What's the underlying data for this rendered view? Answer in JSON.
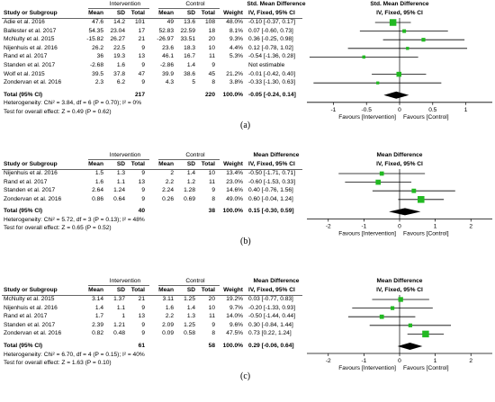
{
  "panels": [
    {
      "caption": "(a)",
      "group_header_a": "Intervention",
      "group_header_b": "Control",
      "effect_header": "Std. Mean Difference",
      "col_headers": [
        "Study or Subgroup",
        "Mean",
        "SD",
        "Total",
        "Mean",
        "SD",
        "Total",
        "Weight",
        "IV, Fixed, 95% CI"
      ],
      "plot_header": "Std. Mean Difference",
      "plot_subheader": "IV, Fixed, 95% CI",
      "rows": [
        {
          "study": "Adie et al. 2016",
          "m1": "47.6",
          "sd1": "14.2",
          "n1": "101",
          "m2": "49",
          "sd2": "13.6",
          "n2": "108",
          "weight": "48.0%",
          "ci": "-0.10 [-0.37, 0.17]"
        },
        {
          "study": "Ballester et al. 2017",
          "m1": "54.35",
          "sd1": "23.04",
          "n1": "17",
          "m2": "52.83",
          "sd2": "22.59",
          "n2": "18",
          "weight": "8.1%",
          "ci": "0.07 [-0.60, 0.73]"
        },
        {
          "study": "McNulty et al. 2015",
          "m1": "-15.82",
          "sd1": "26.27",
          "n1": "21",
          "m2": "-26.97",
          "sd2": "33.51",
          "n2": "20",
          "weight": "9.3%",
          "ci": "0.36 [-0.25, 0.98]"
        },
        {
          "study": "Nijenhuis et al. 2016",
          "m1": "26.2",
          "sd1": "22.5",
          "n1": "9",
          "m2": "23.6",
          "sd2": "18.3",
          "n2": "10",
          "weight": "4.4%",
          "ci": "0.12 [-0.78, 1.02]"
        },
        {
          "study": "Rand et al. 2017",
          "m1": "36",
          "sd1": "19.3",
          "n1": "13",
          "m2": "46.1",
          "sd2": "16.7",
          "n2": "11",
          "weight": "5.3%",
          "ci": "-0.54 [-1.36, 0.28]"
        },
        {
          "study": "Standen et al. 2017",
          "m1": "-2.68",
          "sd1": "1.6",
          "n1": "9",
          "m2": "-2.86",
          "sd2": "1.4",
          "n2": "9",
          "weight": "",
          "ci": "Not estimable"
        },
        {
          "study": "Wolf et al. 2015",
          "m1": "39.5",
          "sd1": "37.8",
          "n1": "47",
          "m2": "39.9",
          "sd2": "38.6",
          "n2": "45",
          "weight": "21.2%",
          "ci": "-0.01 [-0.42, 0.40]"
        },
        {
          "study": "Zondervan et al. 2016",
          "m1": "2.3",
          "sd1": "6.2",
          "n1": "9",
          "m2": "4.3",
          "sd2": "5",
          "n2": "8",
          "weight": "3.8%",
          "ci": "-0.33 [-1.30, 0.63]"
        }
      ],
      "total_label": "Total (95% CI)",
      "total_n1": "217",
      "total_n2": "220",
      "total_weight": "100.0%",
      "total_ci": "-0.05 [-0.24, 0.14]",
      "heterogeneity": "Heterogeneity: Chi² = 3.84, df = 6 (P = 0.70); I² = 0%",
      "overall": "Test for overall effect: Z = 0.49 (P = 0.62)",
      "axis_ticks": [
        "-1",
        "-0.5",
        "0",
        "0.5",
        "1"
      ],
      "favours_left": "Favours [Intervention]",
      "favours_right": "Favours [Control]"
    },
    {
      "caption": "(b)",
      "group_header_a": "Intervention",
      "group_header_b": "Control",
      "effect_header": "Mean Difference",
      "col_headers": [
        "Study or Subgroup",
        "Mean",
        "SD",
        "Total",
        "Mean",
        "SD",
        "Total",
        "Weight",
        "IV, Fixed, 95% CI"
      ],
      "plot_header": "Mean Difference",
      "plot_subheader": "IV, Fixed, 95% CI",
      "rows": [
        {
          "study": "Nijenhuis et al. 2016",
          "m1": "1.5",
          "sd1": "1.3",
          "n1": "9",
          "m2": "2",
          "sd2": "1.4",
          "n2": "10",
          "weight": "13.4%",
          "ci": "-0.50 [-1.71, 0.71]"
        },
        {
          "study": "Rand et al. 2017",
          "m1": "1.6",
          "sd1": "1.1",
          "n1": "13",
          "m2": "2.2",
          "sd2": "1.2",
          "n2": "11",
          "weight": "23.0%",
          "ci": "-0.60 [-1.53, 0.33]"
        },
        {
          "study": "Standen et al. 2017",
          "m1": "2.64",
          "sd1": "1.24",
          "n1": "9",
          "m2": "2.24",
          "sd2": "1.28",
          "n2": "9",
          "weight": "14.6%",
          "ci": "0.40 [-0.76, 1.56]"
        },
        {
          "study": "Zondervan et al. 2016",
          "m1": "0.86",
          "sd1": "0.64",
          "n1": "9",
          "m2": "0.26",
          "sd2": "0.69",
          "n2": "8",
          "weight": "49.0%",
          "ci": "0.60 [-0.04, 1.24]"
        }
      ],
      "total_label": "Total (95% CI)",
      "total_n1": "40",
      "total_n2": "38",
      "total_weight": "100.0%",
      "total_ci": "0.15 [-0.30, 0.59]",
      "heterogeneity": "Heterogeneity: Chi² = 5.72, df = 3 (P = 0.13); I² = 48%",
      "overall": "Test for overall effect: Z = 0.65 (P = 0.52)",
      "axis_ticks": [
        "-2",
        "-1",
        "0",
        "1",
        "2"
      ],
      "favours_left": "Favours [Intervention]",
      "favours_right": "Favours [Control]"
    },
    {
      "caption": "(c)",
      "group_header_a": "Intervention",
      "group_header_b": "Control",
      "effect_header": "Mean Difference",
      "col_headers": [
        "Study or Subgroup",
        "Mean",
        "SD",
        "Total",
        "Mean",
        "SD",
        "Total",
        "Weight",
        "IV, Fixed, 95% CI"
      ],
      "plot_header": "Mean Difference",
      "plot_subheader": "IV, Fixed, 95% CI",
      "rows": [
        {
          "study": "McNulty et al. 2015",
          "m1": "3.14",
          "sd1": "1.37",
          "n1": "21",
          "m2": "3.11",
          "sd2": "1.25",
          "n2": "20",
          "weight": "19.2%",
          "ci": "0.03 [-0.77, 0.83]"
        },
        {
          "study": "Nijenhuis et al. 2016",
          "m1": "1.4",
          "sd1": "1.1",
          "n1": "9",
          "m2": "1.6",
          "sd2": "1.4",
          "n2": "10",
          "weight": "9.7%",
          "ci": "-0.20 [-1.33, 0.93]"
        },
        {
          "study": "Rand et al. 2017",
          "m1": "1.7",
          "sd1": "1",
          "n1": "13",
          "m2": "2.2",
          "sd2": "1.3",
          "n2": "11",
          "weight": "14.0%",
          "ci": "-0.50 [-1.44, 0.44]"
        },
        {
          "study": "Standen et al. 2017",
          "m1": "2.39",
          "sd1": "1.21",
          "n1": "9",
          "m2": "2.09",
          "sd2": "1.25",
          "n2": "9",
          "weight": "9.6%",
          "ci": "0.30 [-0.84, 1.44]"
        },
        {
          "study": "Zondervan et al. 2016",
          "m1": "0.82",
          "sd1": "0.48",
          "n1": "9",
          "m2": "0.09",
          "sd2": "0.58",
          "n2": "8",
          "weight": "47.5%",
          "ci": "0.73 [0.22, 1.24]"
        }
      ],
      "total_label": "Total (95% CI)",
      "total_n1": "61",
      "total_n2": "58",
      "total_weight": "100.0%",
      "total_ci": "0.29 [-0.06, 0.64]",
      "heterogeneity": "Heterogeneity: Chi² = 6.70, df = 4 (P = 0.15); I² = 40%",
      "overall": "Test for overall effect: Z = 1.63 (P = 0.10)",
      "axis_ticks": [
        "-2",
        "-1",
        "0",
        "1",
        "2"
      ],
      "favours_left": "Favours [Intervention]",
      "favours_right": "Favours [Control]"
    }
  ],
  "colors": {
    "marker": "#22b922",
    "line": "#000000",
    "rule": "#666666"
  },
  "chart_data": [
    {
      "type": "scatter",
      "xlim": [
        -1.4,
        1.4
      ],
      "points": [
        {
          "study": "Adie et al. 2016",
          "est": -0.1,
          "lo": -0.37,
          "hi": 0.17,
          "weight": 48.0
        },
        {
          "study": "Ballester et al. 2017",
          "est": 0.07,
          "lo": -0.6,
          "hi": 0.73,
          "weight": 8.1
        },
        {
          "study": "McNulty et al. 2015",
          "est": 0.36,
          "lo": -0.25,
          "hi": 0.98,
          "weight": 9.3
        },
        {
          "study": "Nijenhuis et al. 2016",
          "est": 0.12,
          "lo": -0.78,
          "hi": 1.02,
          "weight": 4.4
        },
        {
          "study": "Rand et al. 2017",
          "est": -0.54,
          "lo": -1.36,
          "hi": 0.28,
          "weight": 5.3
        },
        {
          "study": "Standen et al. 2017",
          "est": null,
          "lo": null,
          "hi": null,
          "weight": 0
        },
        {
          "study": "Wolf et al. 2015",
          "est": -0.01,
          "lo": -0.42,
          "hi": 0.4,
          "weight": 21.2
        },
        {
          "study": "Zondervan et al. 2016",
          "est": -0.33,
          "lo": -1.3,
          "hi": 0.63,
          "weight": 3.8
        }
      ],
      "pooled": {
        "est": -0.05,
        "lo": -0.24,
        "hi": 0.14
      }
    },
    {
      "type": "scatter",
      "xlim": [
        -2.6,
        2.6
      ],
      "points": [
        {
          "study": "Nijenhuis et al. 2016",
          "est": -0.5,
          "lo": -1.71,
          "hi": 0.71,
          "weight": 13.4
        },
        {
          "study": "Rand et al. 2017",
          "est": -0.6,
          "lo": -1.53,
          "hi": 0.33,
          "weight": 23.0
        },
        {
          "study": "Standen et al. 2017",
          "est": 0.4,
          "lo": -0.76,
          "hi": 1.56,
          "weight": 14.6
        },
        {
          "study": "Zondervan et al. 2016",
          "est": 0.6,
          "lo": -0.04,
          "hi": 1.24,
          "weight": 49.0
        }
      ],
      "pooled": {
        "est": 0.15,
        "lo": -0.3,
        "hi": 0.59
      }
    },
    {
      "type": "scatter",
      "xlim": [
        -2.6,
        2.6
      ],
      "points": [
        {
          "study": "McNulty et al. 2015",
          "est": 0.03,
          "lo": -0.77,
          "hi": 0.83,
          "weight": 19.2
        },
        {
          "study": "Nijenhuis et al. 2016",
          "est": -0.2,
          "lo": -1.33,
          "hi": 0.93,
          "weight": 9.7
        },
        {
          "study": "Rand et al. 2017",
          "est": -0.5,
          "lo": -1.44,
          "hi": 0.44,
          "weight": 14.0
        },
        {
          "study": "Standen et al. 2017",
          "est": 0.3,
          "lo": -0.84,
          "hi": 1.44,
          "weight": 9.6
        },
        {
          "study": "Zondervan et al. 2016",
          "est": 0.73,
          "lo": 0.22,
          "hi": 1.24,
          "weight": 47.5
        }
      ],
      "pooled": {
        "est": 0.29,
        "lo": -0.06,
        "hi": 0.64
      }
    }
  ]
}
